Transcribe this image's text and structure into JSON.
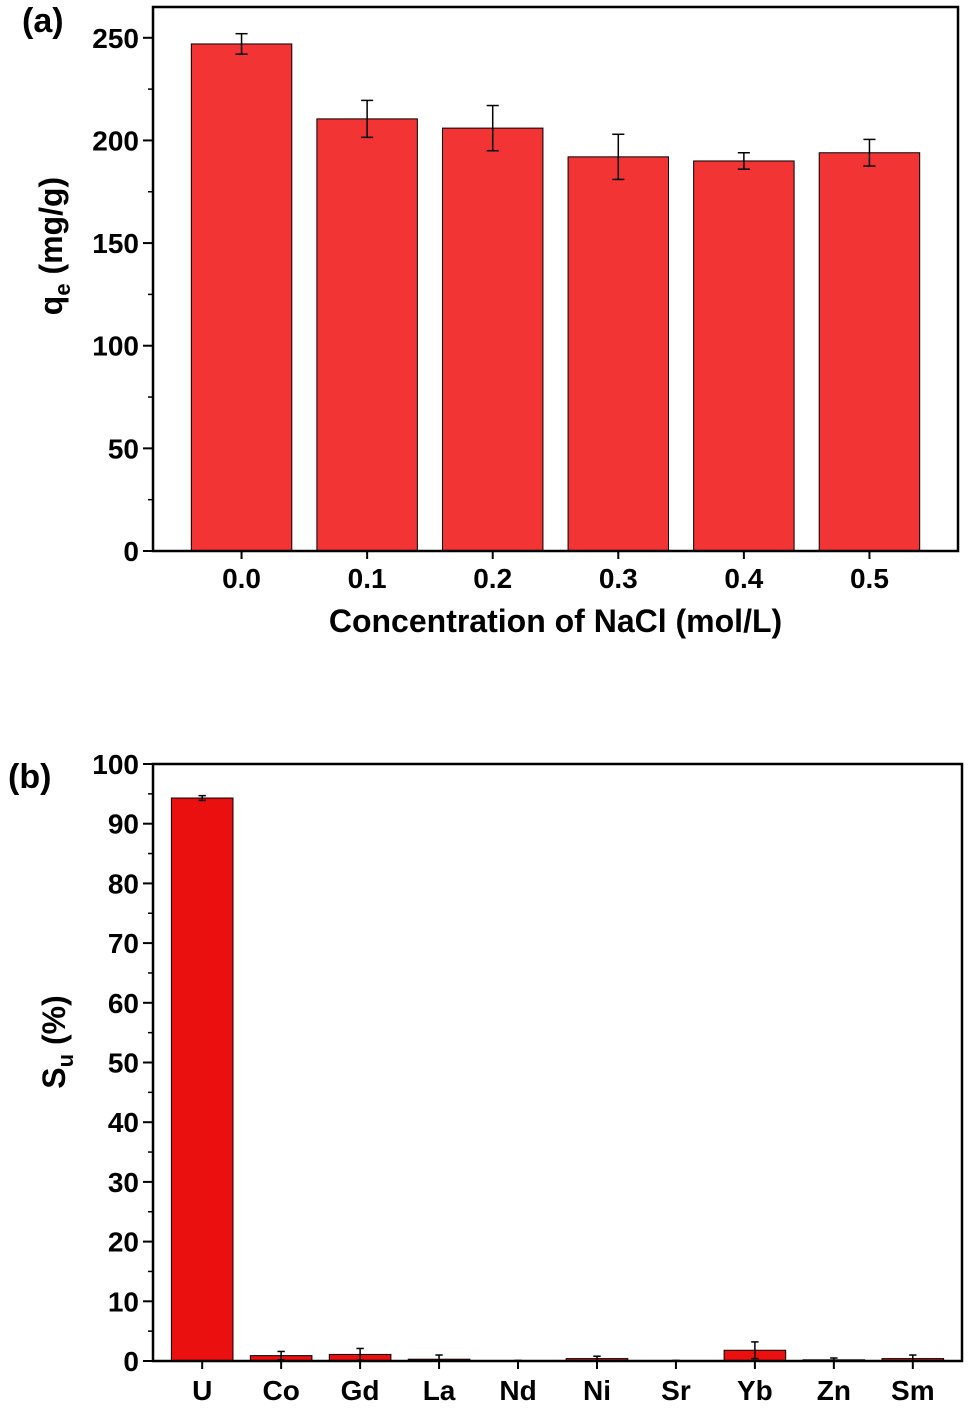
{
  "chart_data": [
    {
      "type": "bar",
      "panel_label": "(a)",
      "xlabel": "Concentration of NaCl (mol/L)",
      "ylabel_main": "q",
      "ylabel_sub": "e",
      "ylabel_unit": " (mg/g)",
      "categories": [
        "0.0",
        "0.1",
        "0.2",
        "0.3",
        "0.4",
        "0.5"
      ],
      "values": [
        247,
        210.5,
        206,
        192,
        190,
        194
      ],
      "errors": [
        5,
        9,
        11,
        11,
        4,
        6.5
      ],
      "ylim": [
        0,
        265
      ],
      "yticks": [
        "0",
        "50",
        "100",
        "150",
        "200",
        "250"
      ],
      "bar_color": "#f23434"
    },
    {
      "type": "bar",
      "panel_label": "(b)",
      "xlabel": "",
      "ylabel_main": "S",
      "ylabel_sub": "u",
      "ylabel_unit": " (%)",
      "categories": [
        "U",
        "Co",
        "Gd",
        "La",
        "Nd",
        "Ni",
        "Sr",
        "Yb",
        "Zn",
        "Sm"
      ],
      "values": [
        94.3,
        0.9,
        1.1,
        0.3,
        0.05,
        0.4,
        0.05,
        1.8,
        0.2,
        0.4
      ],
      "errors": [
        0.4,
        0.7,
        1.0,
        0.7,
        0.05,
        0.4,
        0.05,
        1.4,
        0.3,
        0.6
      ],
      "ylim": [
        0,
        100
      ],
      "yticks": [
        "0",
        "10",
        "20",
        "30",
        "40",
        "50",
        "60",
        "70",
        "80",
        "90",
        "100"
      ],
      "bar_color": "#ea1010"
    }
  ]
}
